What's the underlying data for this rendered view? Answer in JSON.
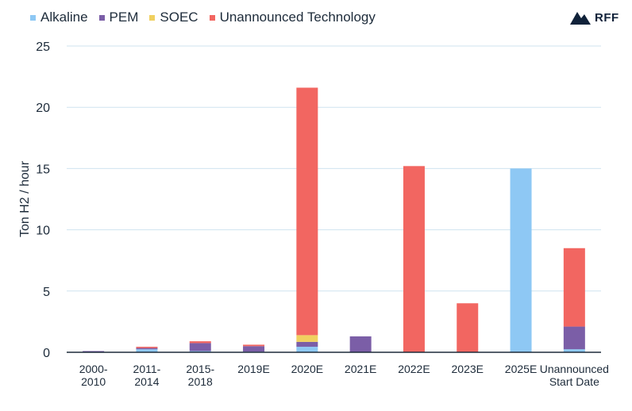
{
  "chart_data": {
    "type": "bar",
    "stacked": true,
    "categories": [
      [
        "2000-",
        "2010"
      ],
      [
        "2011-",
        "2014"
      ],
      [
        "2015-",
        "2018"
      ],
      [
        "2019E"
      ],
      [
        "2020E"
      ],
      [
        "2021E"
      ],
      [
        "2022E"
      ],
      [
        "2023E"
      ],
      [
        "2025E"
      ],
      [
        "Unannounced",
        "Start Date"
      ]
    ],
    "series": [
      {
        "name": "Alkaline",
        "color": "#8ec8f4",
        "values": [
          0.02,
          0.25,
          0.1,
          0.05,
          0.45,
          0,
          0,
          0,
          15.0,
          0.25
        ]
      },
      {
        "name": "PEM",
        "color": "#7b5ea7",
        "values": [
          0.08,
          0.1,
          0.65,
          0.45,
          0.4,
          1.3,
          0,
          0,
          0,
          1.85
        ]
      },
      {
        "name": "SOEC",
        "color": "#f0d060",
        "values": [
          0,
          0,
          0,
          0,
          0.55,
          0,
          0,
          0,
          0,
          0
        ]
      },
      {
        "name": "Unannounced Technology",
        "color": "#f26661",
        "values": [
          0,
          0.1,
          0.15,
          0.12,
          20.2,
          0,
          15.2,
          4.0,
          0,
          6.4
        ]
      }
    ],
    "ylabel": "Ton H2 / hour",
    "ylim": [
      0,
      25
    ],
    "yticks": [
      0,
      5,
      10,
      15,
      20,
      25
    ],
    "grid": true,
    "legend_position": "top"
  },
  "logo": {
    "text": "RFF"
  },
  "colors": {
    "grid": "#cfe3ef",
    "axis": "#1d2b3a",
    "logo": "#10223a"
  }
}
